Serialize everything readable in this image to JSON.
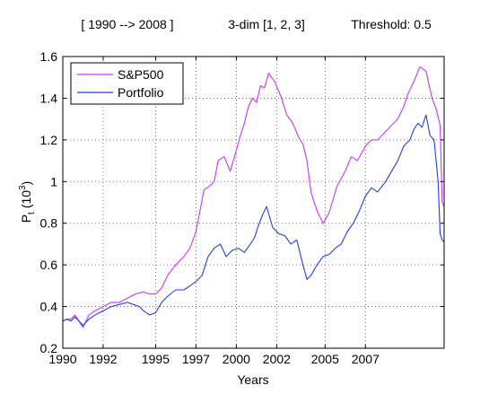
{
  "header": {
    "range": "[ 1990 --> 2008 ]",
    "dim": "3-dim [1, 2, 3]",
    "threshold": "Threshold: 0.5"
  },
  "colors": {
    "sp500": "#cc33ff",
    "portfolio": "#1f3fe0",
    "axis": "#000000",
    "grid": "#555555"
  },
  "chart_data": {
    "type": "line",
    "xlabel": "Years",
    "ylabel_main": "P",
    "ylabel_sub": "t",
    "ylabel_unit": "(10",
    "ylabel_exp": "3",
    "ylabel_close": ")",
    "xlim": [
      1990,
      2008.9
    ],
    "ylim": [
      0.2,
      1.6
    ],
    "grid": true,
    "legend_position": "top-left",
    "xticks": [
      {
        "value": 1990,
        "label": "1990"
      },
      {
        "value": 1992,
        "label": "1992"
      },
      {
        "value": 1994.6,
        "label": "1995"
      },
      {
        "value": 1996.6,
        "label": "1997"
      },
      {
        "value": 1998.6,
        "label": "2000"
      },
      {
        "value": 2000.6,
        "label": "2002"
      },
      {
        "value": 2003.0,
        "label": "2005"
      },
      {
        "value": 2005.0,
        "label": "2007"
      }
    ],
    "yticks": [
      {
        "value": 0.2,
        "label": "0.2"
      },
      {
        "value": 0.4,
        "label": "0.4"
      },
      {
        "value": 0.6,
        "label": "0.6"
      },
      {
        "value": 0.8,
        "label": "0.8"
      },
      {
        "value": 1.0,
        "label": "1"
      },
      {
        "value": 1.2,
        "label": "1.2"
      },
      {
        "value": 1.4,
        "label": "1.4"
      },
      {
        "value": 1.6,
        "label": "1.6"
      }
    ],
    "series": [
      {
        "name": "S&P500",
        "color": "#cc33ff",
        "x": [
          1990.0,
          1990.2,
          1990.4,
          1990.6,
          1990.8,
          1991.0,
          1991.3,
          1991.6,
          1992.0,
          1992.4,
          1992.8,
          1993.2,
          1993.6,
          1994.0,
          1994.3,
          1994.6,
          1994.9,
          1995.2,
          1995.6,
          1996.0,
          1996.3,
          1996.6,
          1996.8,
          1997.0,
          1997.3,
          1997.5,
          1997.7,
          1998.0,
          1998.3,
          1998.6,
          1998.8,
          1999.0,
          1999.2,
          1999.4,
          1999.6,
          1999.8,
          2000.0,
          2000.2,
          2000.5,
          2000.8,
          2001.1,
          2001.4,
          2001.7,
          2001.9,
          2002.1,
          2002.3,
          2002.6,
          2002.9,
          2003.2,
          2003.6,
          2004.0,
          2004.3,
          2004.6,
          2005.0,
          2005.3,
          2005.6,
          2006.0,
          2006.3,
          2006.6,
          2006.9,
          2007.1,
          2007.4,
          2007.7,
          2008.0,
          2008.3,
          2008.5,
          2008.7,
          2008.8,
          2008.9
        ],
        "y": [
          0.33,
          0.34,
          0.34,
          0.36,
          0.33,
          0.3,
          0.36,
          0.38,
          0.4,
          0.42,
          0.42,
          0.44,
          0.46,
          0.47,
          0.46,
          0.46,
          0.49,
          0.55,
          0.6,
          0.64,
          0.68,
          0.76,
          0.86,
          0.96,
          0.98,
          1.0,
          1.1,
          1.12,
          1.05,
          1.15,
          1.22,
          1.28,
          1.36,
          1.4,
          1.38,
          1.46,
          1.45,
          1.52,
          1.48,
          1.41,
          1.32,
          1.28,
          1.21,
          1.18,
          1.1,
          0.95,
          0.86,
          0.8,
          0.85,
          0.98,
          1.05,
          1.12,
          1.1,
          1.17,
          1.2,
          1.2,
          1.24,
          1.27,
          1.3,
          1.36,
          1.42,
          1.48,
          1.55,
          1.53,
          1.4,
          1.35,
          1.27,
          0.9,
          0.88
        ]
      },
      {
        "name": "Portfolio",
        "color": "#1f3fe0",
        "x": [
          1990.0,
          1990.2,
          1990.4,
          1990.6,
          1990.8,
          1991.0,
          1991.3,
          1991.6,
          1992.0,
          1992.4,
          1992.8,
          1993.2,
          1993.5,
          1993.8,
          1994.0,
          1994.3,
          1994.6,
          1994.9,
          1995.2,
          1995.6,
          1996.0,
          1996.3,
          1996.6,
          1996.9,
          1997.2,
          1997.5,
          1997.8,
          1998.1,
          1998.4,
          1998.7,
          1999.0,
          1999.3,
          1999.5,
          1999.7,
          1999.9,
          2000.1,
          2000.4,
          2000.7,
          2001.0,
          2001.3,
          2001.6,
          2001.9,
          2002.1,
          2002.3,
          2002.6,
          2002.9,
          2003.2,
          2003.5,
          2003.8,
          2004.1,
          2004.4,
          2004.7,
          2005.0,
          2005.3,
          2005.6,
          2006.0,
          2006.3,
          2006.6,
          2006.9,
          2007.2,
          2007.4,
          2007.6,
          2007.8,
          2008.0,
          2008.2,
          2008.4,
          2008.6,
          2008.7,
          2008.8,
          2008.9
        ],
        "y": [
          0.33,
          0.34,
          0.33,
          0.35,
          0.33,
          0.31,
          0.34,
          0.36,
          0.38,
          0.4,
          0.41,
          0.42,
          0.41,
          0.4,
          0.38,
          0.36,
          0.37,
          0.42,
          0.45,
          0.48,
          0.48,
          0.5,
          0.52,
          0.55,
          0.64,
          0.68,
          0.7,
          0.64,
          0.67,
          0.68,
          0.66,
          0.7,
          0.73,
          0.79,
          0.84,
          0.88,
          0.78,
          0.75,
          0.74,
          0.7,
          0.72,
          0.6,
          0.53,
          0.55,
          0.6,
          0.64,
          0.65,
          0.68,
          0.7,
          0.76,
          0.8,
          0.86,
          0.93,
          0.97,
          0.95,
          1.0,
          1.05,
          1.1,
          1.17,
          1.2,
          1.25,
          1.28,
          1.26,
          1.32,
          1.22,
          1.2,
          1.0,
          0.75,
          0.72,
          0.71
        ]
      }
    ]
  }
}
